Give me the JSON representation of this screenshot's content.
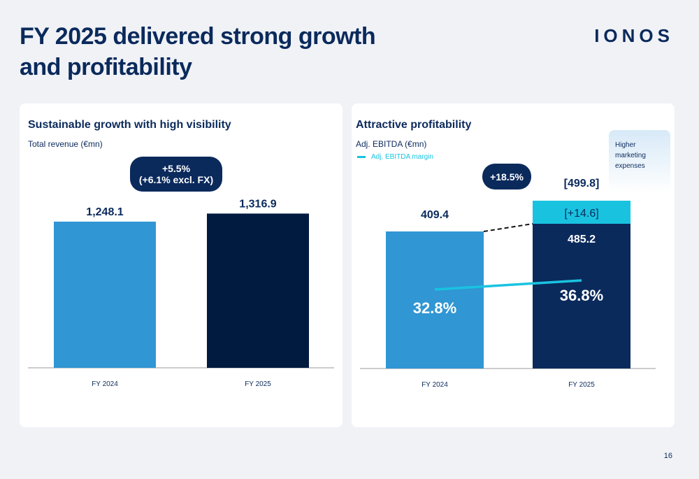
{
  "title_line1": "FY 2025 delivered strong growth",
  "title_line2": "and profitability",
  "logo": "IONOS",
  "page_number": "16",
  "colors": {
    "navy": "#0b2a5c",
    "dark_navy": "#001a40",
    "blue": "#3096d4",
    "cyan": "#19c3e0"
  },
  "chart_data": [
    {
      "type": "bar",
      "title": "Sustainable growth with high visibility",
      "ylabel": "Total revenue (€mn)",
      "categories": [
        "FY 2024",
        "FY 2025"
      ],
      "values": [
        1248.1,
        1316.9
      ],
      "labels": [
        "1,248.1",
        "1,316.9"
      ],
      "growth_line1": "+5.5%",
      "growth_line2": "(+6.1% excl. FX)"
    },
    {
      "type": "bar",
      "title": "Attractive profitability",
      "ylabel": "Adj. EBITDA (€mn)",
      "categories": [
        "FY 2024",
        "FY 2025"
      ],
      "values": [
        409.4,
        485.2
      ],
      "labels": [
        "409.4",
        "485.2"
      ],
      "addon": {
        "value": 14.6,
        "label": "[+14.6]",
        "total_label": "[499.8]"
      },
      "growth": "+18.5%",
      "note": [
        "Higher",
        "marketing",
        "expenses"
      ],
      "line_series": {
        "name": "Adj. EBITDA margin",
        "values": [
          32.8,
          36.8
        ],
        "labels": [
          "32.8%",
          "36.8%"
        ]
      }
    }
  ]
}
